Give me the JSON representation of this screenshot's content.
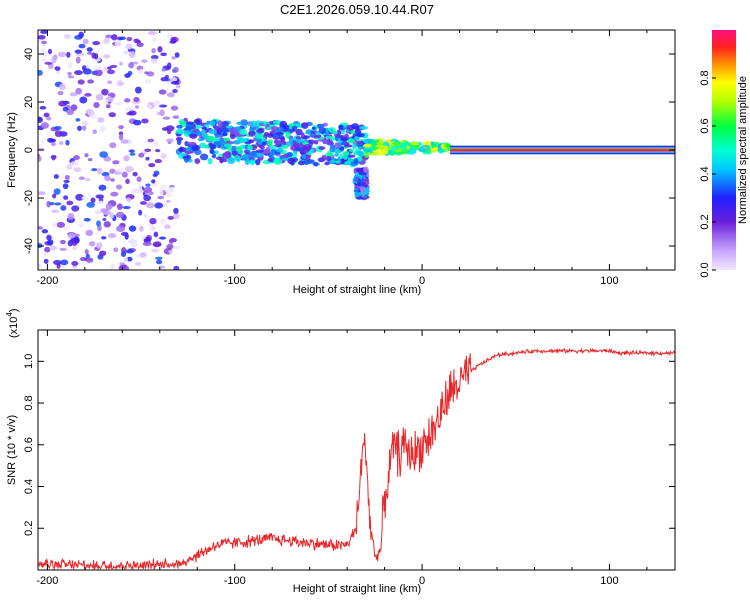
{
  "title": "C2E1.2026.059.10.44.R07",
  "chart_data": [
    {
      "type": "heatmap",
      "title": "C2E1.2026.059.10.44.R07",
      "xlabel": "Height of straight line (km)",
      "ylabel": "Frequency (Hz)",
      "xlim": [
        -205,
        135
      ],
      "ylim": [
        -50,
        50
      ],
      "xticks": [
        -200,
        -100,
        0,
        100
      ],
      "yticks": [
        -40,
        -20,
        0,
        20,
        40
      ],
      "colorbar": {
        "label": "Normalized spectral amplitude",
        "range": [
          0.0,
          1.0
        ],
        "ticks": [
          0.0,
          0.2,
          0.4,
          0.6,
          0.8
        ]
      },
      "regions": [
        {
          "name": "scattered noise",
          "x_range": [
            -205,
            -130
          ],
          "freq_range": [
            -50,
            50
          ],
          "amplitude": 0.15
        },
        {
          "name": "broadband band",
          "x_range": [
            -130,
            -30
          ],
          "freq_range": [
            -5,
            12
          ],
          "amplitude": 0.35
        },
        {
          "name": "low-frequency patch",
          "x_range": [
            -35,
            -30
          ],
          "freq_range": [
            -20,
            -8
          ],
          "amplitude": 0.3
        },
        {
          "name": "converging band",
          "x_range": [
            -30,
            15
          ],
          "freq_range": [
            -2,
            4
          ],
          "amplitude": 0.6
        },
        {
          "name": "narrow carrier line",
          "x_range": [
            15,
            135
          ],
          "freq_range": [
            -1,
            1
          ],
          "amplitude": 0.95
        }
      ]
    },
    {
      "type": "line",
      "ylabel": "SNR (10 * v/v)",
      "xlabel": "Height of straight line (km)",
      "y_scale_label": "(x10",
      "y_scale_exponent": "4",
      "xlim": [
        -205,
        135
      ],
      "ylim": [
        0.0,
        1.15
      ],
      "xticks": [
        -200,
        -100,
        0,
        100
      ],
      "yticks": [
        0.2,
        0.4,
        0.6,
        0.8,
        1.0
      ],
      "series": [
        {
          "name": "SNR",
          "color": "#e8282a",
          "x": [
            -205,
            -180,
            -150,
            -130,
            -120,
            -110,
            -100,
            -90,
            -80,
            -70,
            -60,
            -50,
            -40,
            -35,
            -32,
            -30,
            -28,
            -25,
            -22,
            -20,
            -15,
            -12,
            -10,
            -5,
            0,
            5,
            10,
            15,
            20,
            30,
            40,
            60,
            80,
            95,
            100,
            105,
            120,
            135
          ],
          "y": [
            0.03,
            0.02,
            0.02,
            0.03,
            0.07,
            0.12,
            0.13,
            0.14,
            0.15,
            0.14,
            0.13,
            0.12,
            0.12,
            0.2,
            0.55,
            0.6,
            0.25,
            0.06,
            0.1,
            0.35,
            0.6,
            0.55,
            0.6,
            0.55,
            0.6,
            0.65,
            0.75,
            0.85,
            0.9,
            0.98,
            1.03,
            1.05,
            1.05,
            1.05,
            1.05,
            1.04,
            1.04,
            1.04
          ]
        }
      ]
    }
  ]
}
